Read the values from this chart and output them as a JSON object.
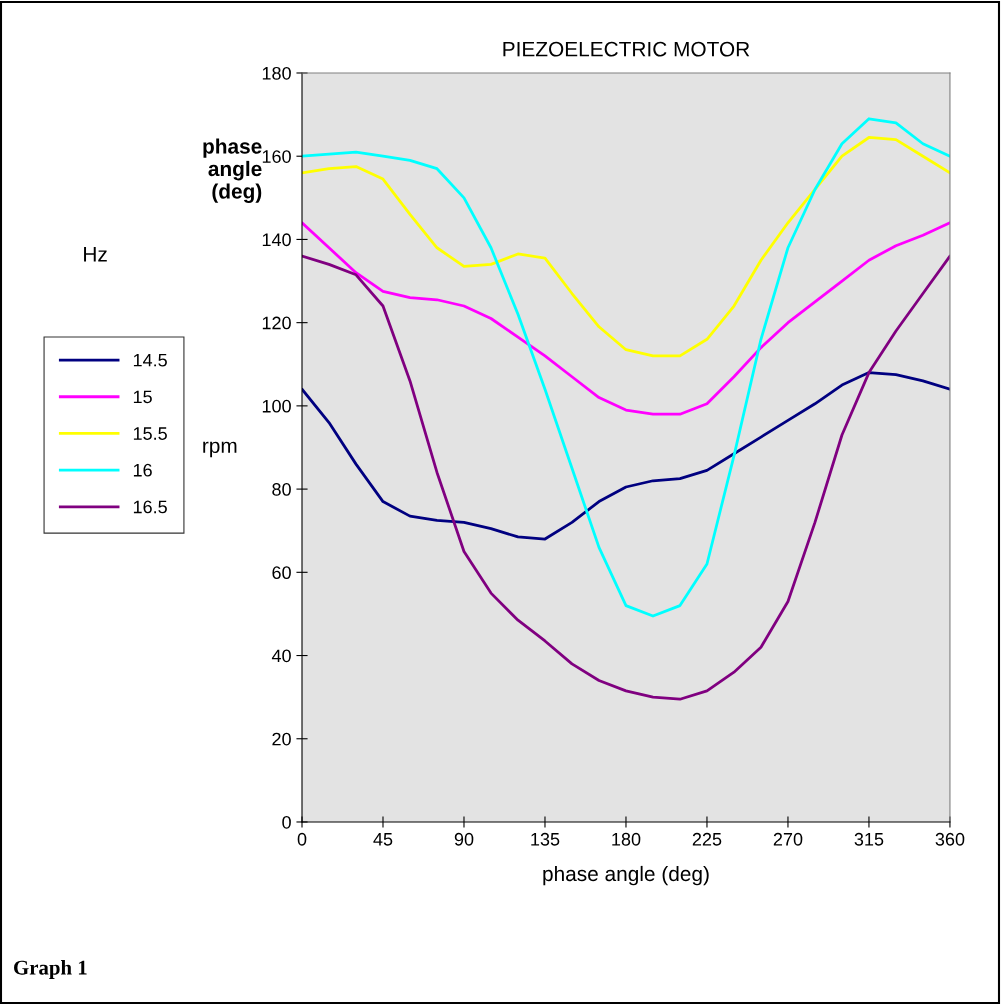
{
  "chart_data": {
    "type": "line",
    "title": "PIEZOELECTRIC MOTOR",
    "xlabel": "phase angle (deg)",
    "ylabel": "rpm",
    "legend_title": "Hz",
    "x": [
      0,
      15,
      30,
      45,
      60,
      75,
      90,
      105,
      120,
      135,
      150,
      165,
      180,
      195,
      210,
      225,
      240,
      255,
      270,
      285,
      300,
      315,
      330,
      345,
      360
    ],
    "series": [
      {
        "name": "14.5",
        "color": "#000080",
        "values": [
          104,
          96,
          86,
          77,
          73.5,
          72.5,
          72,
          70.5,
          68.5,
          68,
          72,
          77,
          80.5,
          82,
          82.5,
          84.5,
          88.5,
          92.5,
          96.5,
          100.5,
          105,
          108,
          107.5,
          106,
          104
        ]
      },
      {
        "name": "15",
        "color": "#ff00ff",
        "values": [
          144,
          138,
          132,
          127.5,
          126,
          125.5,
          124,
          121,
          116.5,
          112,
          107,
          102,
          99,
          98,
          98,
          100.5,
          107,
          114,
          120,
          125,
          130,
          135,
          138.5,
          141,
          144
        ]
      },
      {
        "name": "15.5",
        "color": "#ffff00",
        "values": [
          156,
          157,
          157.5,
          154.5,
          146,
          138,
          133.5,
          134,
          136.5,
          135.5,
          127,
          119,
          113.5,
          112,
          112,
          116,
          124,
          135,
          144,
          152,
          160,
          164.5,
          164,
          160,
          156
        ]
      },
      {
        "name": "16",
        "color": "#00ffff",
        "values": [
          160,
          160.5,
          161,
          160,
          159,
          157,
          150,
          138,
          122,
          104,
          85,
          66,
          52,
          49.5,
          52,
          62,
          88,
          116,
          138,
          152,
          163,
          169,
          168,
          163,
          160
        ]
      },
      {
        "name": "16.5",
        "color": "#800080",
        "values": [
          136,
          134,
          131.5,
          124,
          106,
          84,
          65,
          55,
          48.5,
          43.5,
          38,
          34,
          31.5,
          30,
          29.5,
          31.5,
          36,
          42,
          53,
          72,
          93,
          108,
          118,
          127,
          136
        ]
      }
    ],
    "xlim": [
      0,
      360
    ],
    "xticks": [
      0,
      45,
      90,
      135,
      180,
      225,
      270,
      315,
      360
    ],
    "ylim": [
      0,
      180
    ],
    "yticks": [
      0,
      20,
      40,
      60,
      80,
      100,
      120,
      140,
      160,
      180
    ],
    "grid": false,
    "legend": "left",
    "marker": "none",
    "line_style": "solid",
    "annotations": [
      "phase\nangle\n(deg)",
      "Graph 1"
    ]
  }
}
